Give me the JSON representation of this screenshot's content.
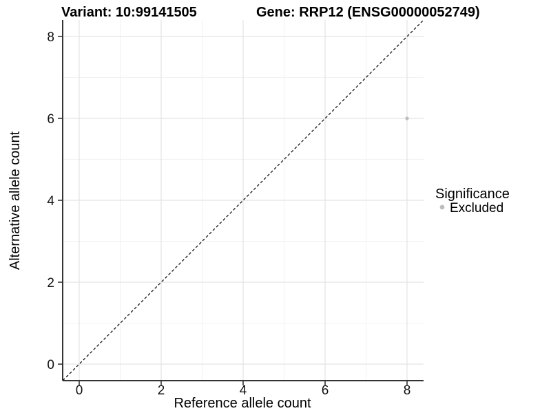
{
  "chart_data": {
    "type": "scatter",
    "title_variant": "Variant: 10:99141505",
    "title_gene": "Gene: RRP12 (ENSG00000052749)",
    "xlabel": "Reference allele count",
    "ylabel": "Alternative allele count",
    "xlim": [
      -0.4,
      8.4
    ],
    "ylim": [
      -0.4,
      8.4
    ],
    "x_ticks": [
      0,
      2,
      4,
      6,
      8
    ],
    "y_ticks": [
      0,
      2,
      4,
      6,
      8
    ],
    "x_minor_ticks": [
      1,
      3,
      5,
      7
    ],
    "y_minor_ticks": [
      1,
      3,
      5,
      7
    ],
    "grid": "major+minor",
    "reference_line": {
      "type": "identity y=x",
      "style": "dashed",
      "color": "#000000"
    },
    "points": [
      {
        "x": 8,
        "y": 6,
        "significance": "Excluded",
        "color": "#bdbdbd",
        "radius": 2.6
      }
    ],
    "legend": {
      "title": "Significance",
      "position": "right",
      "entries": [
        {
          "label": "Excluded",
          "color": "#bdbdbd"
        }
      ]
    },
    "colors": {
      "background": "#ffffff",
      "grid_major": "#e3e3e3",
      "grid_minor": "#f1f1f1",
      "axis_line": "#333333",
      "tick_mark": "#333333",
      "text": "#000000",
      "point": "#bdbdbd"
    }
  }
}
